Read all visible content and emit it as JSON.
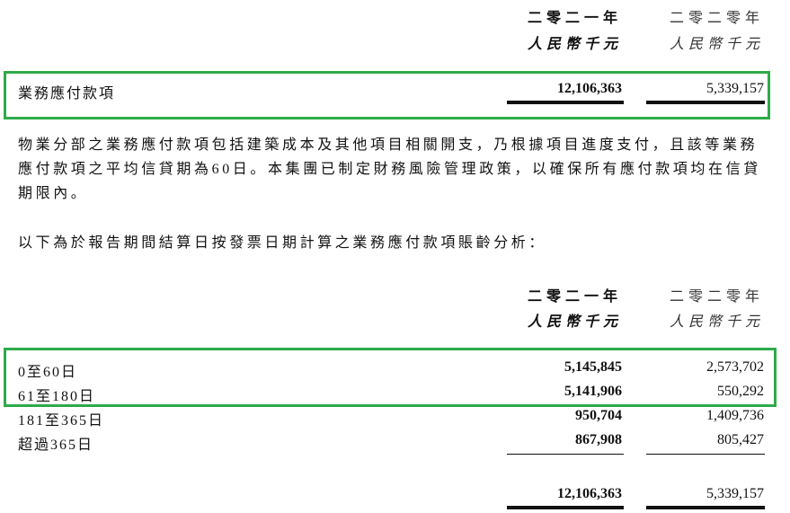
{
  "headers": {
    "year_current": "二零二一年",
    "year_prior": "二零二零年",
    "currency_current": "人民幣千元",
    "currency_prior": "人民幣千元"
  },
  "payables_row": {
    "label": "業務應付款項",
    "current": "12,106,363",
    "prior": "5,339,157"
  },
  "paragraph1": "物業分部之業務應付款項包括建築成本及其他項目相關開支，乃根據項目進度支付，且該等業務應付款項之平均信貸期為60日。本集團已制定財務風險管理政策，以確保所有應付款項均在信貸期限內。",
  "paragraph2": "以下為於報告期間結算日按發票日期計算之業務應付款項賬齡分析：",
  "aging_rows": [
    {
      "label": "0至60日",
      "current": "5,145,845",
      "prior": "2,573,702"
    },
    {
      "label": "61至180日",
      "current": "5,141,906",
      "prior": "550,292"
    },
    {
      "label": "181至365日",
      "current": "950,704",
      "prior": "1,409,736"
    },
    {
      "label": "超過365日",
      "current": "867,908",
      "prior": "805,427"
    }
  ],
  "total": {
    "current": "12,106,363",
    "prior": "5,339,157"
  },
  "highlight_color": "#2eaa4a"
}
